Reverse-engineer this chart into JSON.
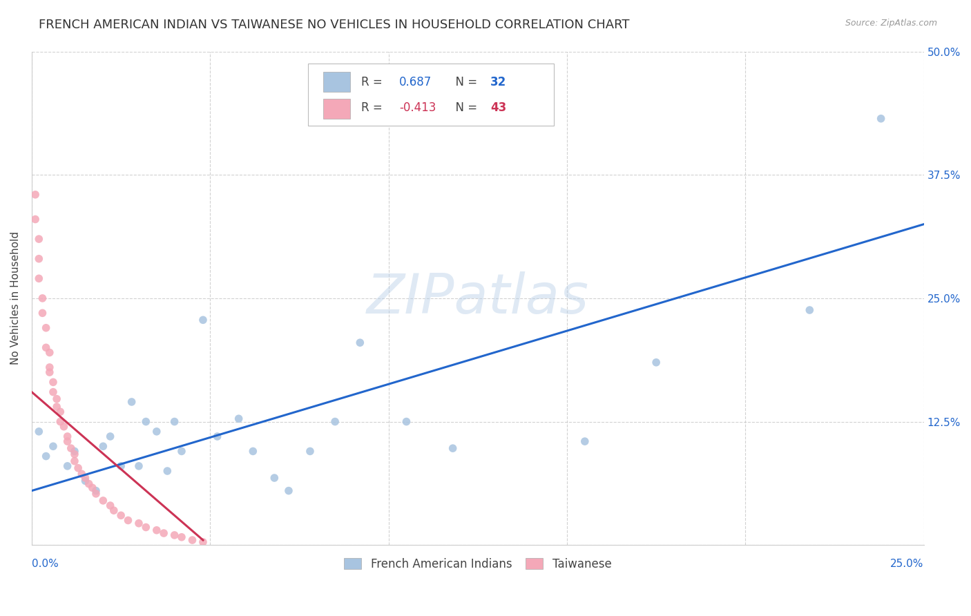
{
  "title": "FRENCH AMERICAN INDIAN VS TAIWANESE NO VEHICLES IN HOUSEHOLD CORRELATION CHART",
  "source": "Source: ZipAtlas.com",
  "ylabel": "No Vehicles in Household",
  "xlim": [
    0.0,
    0.25
  ],
  "ylim": [
    0.0,
    0.5
  ],
  "xticks": [
    0.0,
    0.05,
    0.1,
    0.15,
    0.2,
    0.25
  ],
  "yticks": [
    0.0,
    0.125,
    0.25,
    0.375,
    0.5
  ],
  "xticklabels_left": [
    "0.0%",
    "",
    "",
    "",
    "",
    ""
  ],
  "xticklabels_right": [
    "",
    "",
    "",
    "",
    "",
    "25.0%"
  ],
  "yticklabels_right": [
    "",
    "12.5%",
    "25.0%",
    "37.5%",
    "50.0%"
  ],
  "blue_R": 0.687,
  "blue_N": 32,
  "pink_R": -0.413,
  "pink_N": 43,
  "blue_color": "#a8c4e0",
  "pink_color": "#f4a8b8",
  "blue_line_color": "#2266cc",
  "pink_line_color": "#cc3355",
  "watermark": "ZIPatlas",
  "blue_scatter_x": [
    0.002,
    0.004,
    0.006,
    0.01,
    0.012,
    0.015,
    0.018,
    0.02,
    0.022,
    0.025,
    0.028,
    0.03,
    0.032,
    0.035,
    0.038,
    0.04,
    0.042,
    0.048,
    0.052,
    0.058,
    0.062,
    0.068,
    0.072,
    0.078,
    0.085,
    0.092,
    0.105,
    0.118,
    0.155,
    0.175,
    0.218,
    0.238
  ],
  "blue_scatter_y": [
    0.115,
    0.09,
    0.1,
    0.08,
    0.095,
    0.065,
    0.055,
    0.1,
    0.11,
    0.08,
    0.145,
    0.08,
    0.125,
    0.115,
    0.075,
    0.125,
    0.095,
    0.228,
    0.11,
    0.128,
    0.095,
    0.068,
    0.055,
    0.095,
    0.125,
    0.205,
    0.125,
    0.098,
    0.105,
    0.185,
    0.238,
    0.432
  ],
  "pink_scatter_x": [
    0.001,
    0.001,
    0.002,
    0.002,
    0.002,
    0.003,
    0.003,
    0.004,
    0.004,
    0.005,
    0.005,
    0.005,
    0.006,
    0.006,
    0.007,
    0.007,
    0.008,
    0.008,
    0.009,
    0.01,
    0.01,
    0.011,
    0.012,
    0.012,
    0.013,
    0.014,
    0.015,
    0.016,
    0.017,
    0.018,
    0.02,
    0.022,
    0.023,
    0.025,
    0.027,
    0.03,
    0.032,
    0.035,
    0.037,
    0.04,
    0.042,
    0.045,
    0.048
  ],
  "pink_scatter_y": [
    0.355,
    0.33,
    0.31,
    0.29,
    0.27,
    0.25,
    0.235,
    0.22,
    0.2,
    0.195,
    0.18,
    0.175,
    0.165,
    0.155,
    0.148,
    0.14,
    0.135,
    0.125,
    0.12,
    0.11,
    0.105,
    0.098,
    0.092,
    0.085,
    0.078,
    0.072,
    0.068,
    0.062,
    0.058,
    0.052,
    0.045,
    0.04,
    0.035,
    0.03,
    0.025,
    0.022,
    0.018,
    0.015,
    0.012,
    0.01,
    0.008,
    0.005,
    0.003
  ],
  "blue_line_x": [
    0.0,
    0.25
  ],
  "blue_line_y": [
    0.055,
    0.325
  ],
  "pink_line_x": [
    0.0,
    0.048
  ],
  "pink_line_y": [
    0.155,
    0.005
  ],
  "background_color": "#ffffff",
  "grid_color": "#cccccc",
  "title_fontsize": 13,
  "label_fontsize": 11,
  "tick_fontsize": 11,
  "scatter_size": 70
}
